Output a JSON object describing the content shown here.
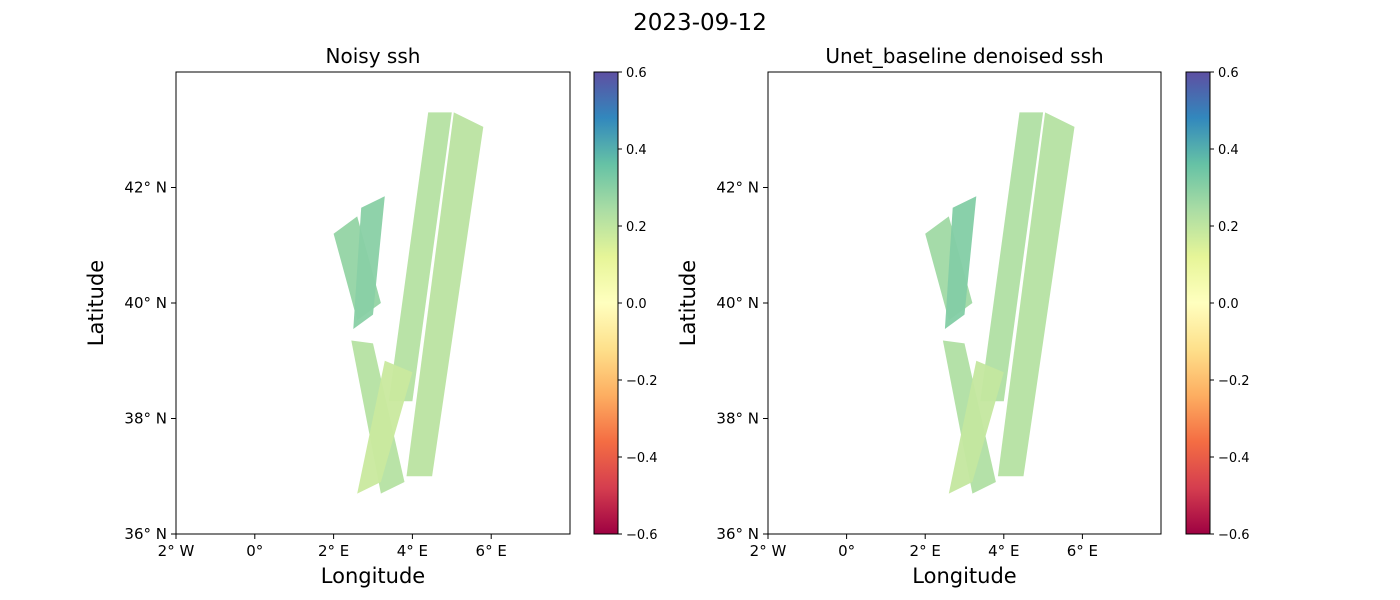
{
  "figure": {
    "suptitle": "2023-09-12"
  },
  "chart_data": [
    {
      "type": "heatmap",
      "title": "Noisy ssh",
      "xlabel": "Longitude",
      "ylabel": "Latitude",
      "xlim": [
        -2,
        8
      ],
      "ylim": [
        36,
        44
      ],
      "x_ticks": [
        -2,
        0,
        2,
        4,
        6
      ],
      "x_tick_labels": [
        "2° W",
        "0°",
        "2° E",
        "4° E",
        "6° E"
      ],
      "y_ticks": [
        36,
        38,
        40,
        42
      ],
      "y_tick_labels": [
        "36° N",
        "38° N",
        "40° N",
        "42° N"
      ],
      "colormap": "Spectral",
      "colorbar": {
        "range": [
          -0.6,
          0.6
        ],
        "ticks": [
          0.6,
          0.4,
          0.2,
          0.0,
          -0.2,
          -0.4,
          -0.6
        ],
        "tick_labels": [
          "0.6",
          "0.4",
          "0.2",
          "0.0",
          "−0.2",
          "−0.4",
          "−0.6"
        ]
      },
      "swaths": [
        {
          "corners": [
            [
              2.0,
              41.2
            ],
            [
              2.6,
              41.5
            ],
            [
              3.2,
              40.0
            ],
            [
              2.6,
              39.7
            ]
          ],
          "value": 0.28
        },
        {
          "corners": [
            [
              2.7,
              41.65
            ],
            [
              3.3,
              41.85
            ],
            [
              3.0,
              39.8
            ],
            [
              2.5,
              39.55
            ]
          ],
          "value": 0.3
        },
        {
          "corners": [
            [
              4.4,
              43.3
            ],
            [
              5.0,
              43.3
            ],
            [
              4.0,
              38.3
            ],
            [
              3.4,
              38.3
            ]
          ],
          "value": 0.22
        },
        {
          "corners": [
            [
              5.05,
              43.3
            ],
            [
              5.8,
              43.05
            ],
            [
              4.5,
              37.0
            ],
            [
              3.85,
              37.0
            ]
          ],
          "value": 0.21
        },
        {
          "corners": [
            [
              2.45,
              39.35
            ],
            [
              3.0,
              39.3
            ],
            [
              3.8,
              36.9
            ],
            [
              3.2,
              36.7
            ]
          ],
          "value": 0.22
        },
        {
          "corners": [
            [
              2.6,
              36.7
            ],
            [
              3.2,
              36.9
            ],
            [
              4.0,
              38.8
            ],
            [
              3.3,
              39.0
            ]
          ],
          "value": 0.18
        }
      ]
    },
    {
      "type": "heatmap",
      "title": "Unet_baseline denoised ssh",
      "xlabel": "Longitude",
      "ylabel": "Latitude",
      "xlim": [
        -2,
        8
      ],
      "ylim": [
        36,
        44
      ],
      "x_ticks": [
        -2,
        0,
        2,
        4,
        6
      ],
      "x_tick_labels": [
        "2° W",
        "0°",
        "2° E",
        "4° E",
        "6° E"
      ],
      "y_ticks": [
        36,
        38,
        40,
        42
      ],
      "y_tick_labels": [
        "36° N",
        "38° N",
        "40° N",
        "42° N"
      ],
      "colormap": "Spectral",
      "colorbar": {
        "range": [
          -0.6,
          0.6
        ],
        "ticks": [
          0.6,
          0.4,
          0.2,
          0.0,
          -0.2,
          -0.4,
          -0.6
        ],
        "tick_labels": [
          "0.6",
          "0.4",
          "0.2",
          "0.0",
          "−0.2",
          "−0.4",
          "−0.6"
        ]
      },
      "swaths": [
        {
          "corners": [
            [
              2.0,
              41.2
            ],
            [
              2.6,
              41.5
            ],
            [
              3.2,
              40.0
            ],
            [
              2.6,
              39.7
            ]
          ],
          "value": 0.26
        },
        {
          "corners": [
            [
              2.7,
              41.65
            ],
            [
              3.3,
              41.85
            ],
            [
              3.0,
              39.8
            ],
            [
              2.5,
              39.55
            ]
          ],
          "value": 0.31
        },
        {
          "corners": [
            [
              4.4,
              43.3
            ],
            [
              5.0,
              43.3
            ],
            [
              4.0,
              38.3
            ],
            [
              3.4,
              38.3
            ]
          ],
          "value": 0.23
        },
        {
          "corners": [
            [
              5.05,
              43.3
            ],
            [
              5.8,
              43.05
            ],
            [
              4.5,
              37.0
            ],
            [
              3.85,
              37.0
            ]
          ],
          "value": 0.22
        },
        {
          "corners": [
            [
              2.45,
              39.35
            ],
            [
              3.0,
              39.3
            ],
            [
              3.8,
              36.9
            ],
            [
              3.2,
              36.7
            ]
          ],
          "value": 0.23
        },
        {
          "corners": [
            [
              2.6,
              36.7
            ],
            [
              3.2,
              36.9
            ],
            [
              4.0,
              38.8
            ],
            [
              3.3,
              39.0
            ]
          ],
          "value": 0.19
        }
      ]
    }
  ]
}
